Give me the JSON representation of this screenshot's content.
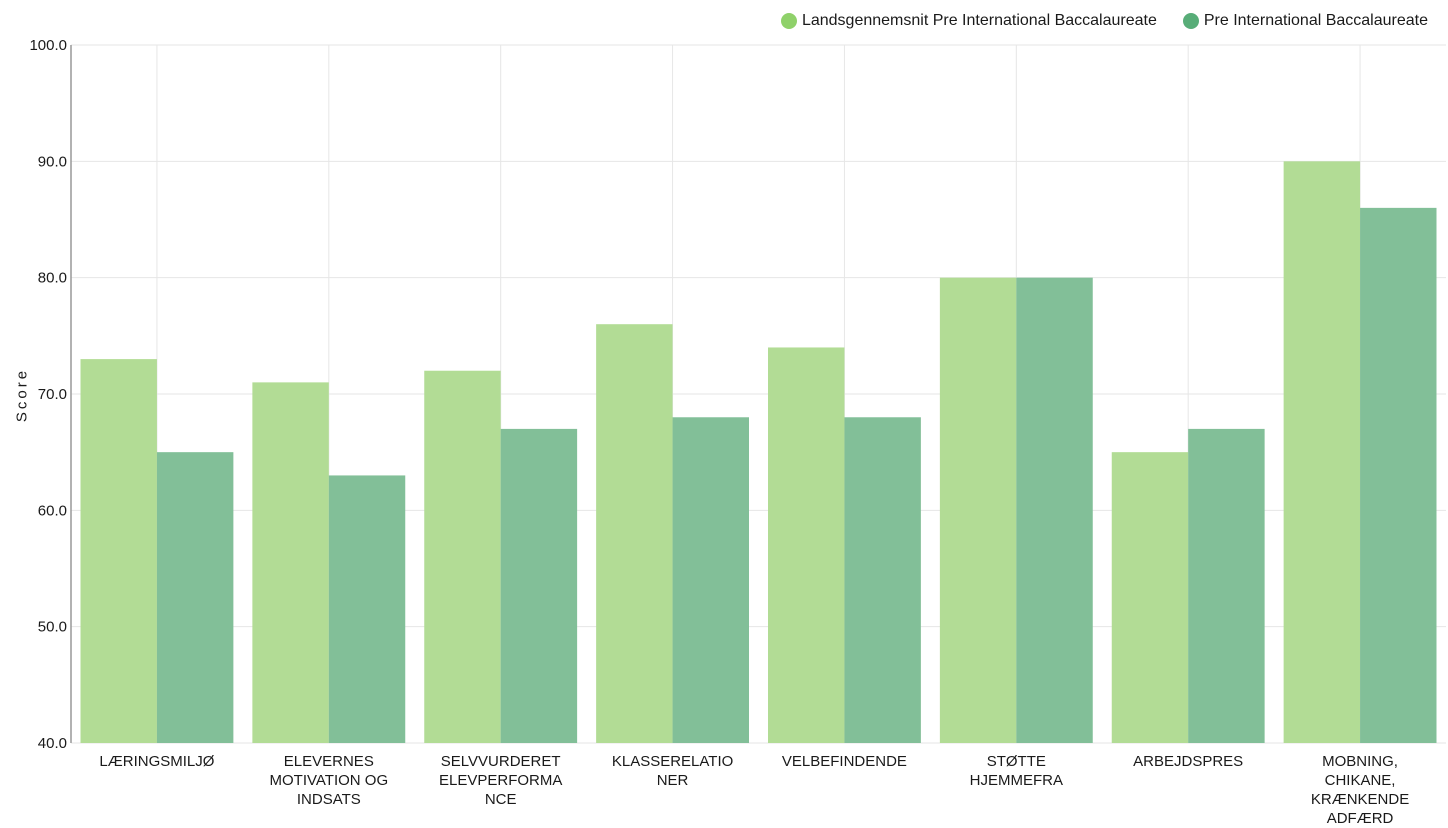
{
  "chart_data": {
    "type": "bar",
    "title": "",
    "xlabel": "",
    "ylabel": "Score",
    "ylim": [
      40,
      100
    ],
    "yticks": [
      "40.0",
      "50.0",
      "60.0",
      "70.0",
      "80.0",
      "90.0",
      "100.0"
    ],
    "ytick_values": [
      40,
      50,
      60,
      70,
      80,
      90,
      100
    ],
    "grid": true,
    "legend_position": "top-right",
    "categories": [
      "LÆRINGSMILJØ",
      "ELEVERNES MOTIVATION OG INDSATS",
      "SELVVURDERET ELEVPERFORMA NCE",
      "KLASSERELATIO NER",
      "VELBEFINDENDE",
      "STØTTE HJEMMEFRA",
      "ARBEJDSPRES",
      "MOBNING, CHIKANE, KRÆNKENDE ADFÆRD"
    ],
    "category_lines": [
      [
        "LÆRINGSMILJØ"
      ],
      [
        "ELEVERNES",
        "MOTIVATION OG",
        "INDSATS"
      ],
      [
        "SELVVURDERET",
        "ELEVPERFORMA",
        "NCE"
      ],
      [
        "KLASSERELATIO",
        "NER"
      ],
      [
        "VELBEFINDENDE"
      ],
      [
        "STØTTE",
        "HJEMMEFRA"
      ],
      [
        "ARBEJDSPRES"
      ],
      [
        "MOBNING,",
        "CHIKANE,",
        "KRÆNKENDE",
        "ADFÆRD"
      ]
    ],
    "series": [
      {
        "name": "Landsgennemsnit Pre International Baccalaureate",
        "color": "#b2dc95",
        "values": [
          73,
          71,
          72,
          76,
          74,
          80,
          65,
          90
        ]
      },
      {
        "name": "Pre International Baccalaureate",
        "color": "#82bf98",
        "values": [
          65,
          63,
          67,
          68,
          68,
          80,
          67,
          86
        ]
      }
    ],
    "legend_dot_colors": [
      "#8fd16a",
      "#58ad78"
    ]
  }
}
